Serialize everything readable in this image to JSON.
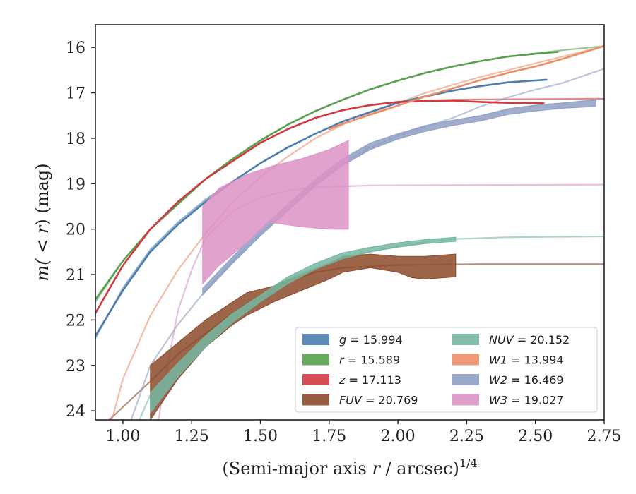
{
  "chart_data": {
    "type": "line",
    "title": "",
    "xlabel_main": "(Semi-major axis ",
    "xlabel_r": "r",
    "xlabel_tail": " / arcsec)",
    "xlabel_exp": "1/4",
    "ylabel_main": "m(",
    "ylabel_mid": " < ",
    "ylabel_r": "r",
    "ylabel_tail": ") (mag)",
    "xlim": [
      0.9,
      2.75
    ],
    "ylim": [
      24.2,
      15.5
    ],
    "y_inverted": true,
    "grid": false,
    "legend_position": "lower-right",
    "xticks": [
      1.0,
      1.25,
      1.5,
      1.75,
      2.0,
      2.25,
      2.5,
      2.75
    ],
    "xtick_labels": [
      "1.00",
      "1.25",
      "1.50",
      "1.75",
      "2.00",
      "2.25",
      "2.50",
      "2.75"
    ],
    "yticks": [
      16,
      17,
      18,
      19,
      20,
      21,
      22,
      23,
      24
    ],
    "ytick_labels": [
      "16",
      "17",
      "18",
      "19",
      "20",
      "21",
      "22",
      "23",
      "24"
    ],
    "series": [
      {
        "name": "g",
        "legend_value": "= 15.994",
        "color": "#4c7db0",
        "model": [
          [
            0.9,
            22.4
          ],
          [
            1.0,
            21.3
          ],
          [
            1.1,
            20.45
          ],
          [
            1.2,
            19.85
          ],
          [
            1.3,
            19.35
          ],
          [
            1.4,
            18.95
          ],
          [
            1.5,
            18.55
          ],
          [
            1.6,
            18.2
          ],
          [
            1.7,
            17.9
          ],
          [
            1.8,
            17.63
          ],
          [
            1.9,
            17.42
          ],
          [
            2.0,
            17.22
          ],
          [
            2.1,
            17.07
          ],
          [
            2.2,
            16.95
          ],
          [
            2.3,
            16.85
          ],
          [
            2.4,
            16.77
          ],
          [
            2.54,
            16.71
          ]
        ],
        "data": [
          [
            0.9,
            22.35
          ],
          [
            1.0,
            21.35
          ],
          [
            1.1,
            20.5
          ],
          [
            1.2,
            19.9
          ],
          [
            1.3,
            19.4
          ],
          [
            1.4,
            18.95
          ],
          [
            1.5,
            18.55
          ],
          [
            1.6,
            18.2
          ],
          [
            1.7,
            17.9
          ],
          [
            1.8,
            17.63
          ],
          [
            1.9,
            17.42
          ],
          [
            2.0,
            17.22
          ],
          [
            2.1,
            17.08
          ],
          [
            2.2,
            16.95
          ],
          [
            2.3,
            16.85
          ],
          [
            2.4,
            16.77
          ],
          [
            2.54,
            16.71
          ]
        ]
      },
      {
        "name": "r",
        "legend_value": "= 15.589",
        "color": "#59a14f",
        "model": [
          [
            0.9,
            21.6
          ],
          [
            1.0,
            20.7
          ],
          [
            1.1,
            20.0
          ],
          [
            1.2,
            19.45
          ],
          [
            1.3,
            18.9
          ],
          [
            1.4,
            18.45
          ],
          [
            1.5,
            18.05
          ],
          [
            1.6,
            17.7
          ],
          [
            1.7,
            17.4
          ],
          [
            1.8,
            17.15
          ],
          [
            1.9,
            16.92
          ],
          [
            2.0,
            16.73
          ],
          [
            2.1,
            16.56
          ],
          [
            2.2,
            16.42
          ],
          [
            2.3,
            16.3
          ],
          [
            2.4,
            16.2
          ],
          [
            2.5,
            16.13
          ],
          [
            2.6,
            16.06
          ],
          [
            2.75,
            15.97
          ]
        ],
        "data": [
          [
            0.9,
            21.55
          ],
          [
            1.0,
            20.7
          ],
          [
            1.1,
            20.0
          ],
          [
            1.2,
            19.45
          ],
          [
            1.3,
            18.9
          ],
          [
            1.4,
            18.45
          ],
          [
            1.5,
            18.05
          ],
          [
            1.6,
            17.7
          ],
          [
            1.7,
            17.4
          ],
          [
            1.8,
            17.15
          ],
          [
            1.9,
            16.92
          ],
          [
            2.0,
            16.73
          ],
          [
            2.1,
            16.56
          ],
          [
            2.2,
            16.42
          ],
          [
            2.3,
            16.3
          ],
          [
            2.4,
            16.2
          ],
          [
            2.5,
            16.14
          ],
          [
            2.58,
            16.1
          ]
        ]
      },
      {
        "name": "z",
        "legend_value": "= 17.113",
        "color": "#d13b40",
        "model": [
          [
            0.9,
            21.85
          ],
          [
            1.0,
            20.8
          ],
          [
            1.1,
            20.0
          ],
          [
            1.2,
            19.4
          ],
          [
            1.3,
            18.9
          ],
          [
            1.4,
            18.5
          ],
          [
            1.5,
            18.1
          ],
          [
            1.6,
            17.8
          ],
          [
            1.7,
            17.55
          ],
          [
            1.8,
            17.38
          ],
          [
            1.9,
            17.27
          ],
          [
            2.0,
            17.2
          ],
          [
            2.1,
            17.17
          ],
          [
            2.2,
            17.15
          ],
          [
            2.4,
            17.14
          ],
          [
            2.75,
            17.13
          ]
        ],
        "data": [
          [
            0.9,
            21.85
          ],
          [
            1.0,
            20.8
          ],
          [
            1.1,
            20.0
          ],
          [
            1.2,
            19.4
          ],
          [
            1.3,
            18.9
          ],
          [
            1.4,
            18.5
          ],
          [
            1.5,
            18.1
          ],
          [
            1.6,
            17.8
          ],
          [
            1.7,
            17.55
          ],
          [
            1.8,
            17.38
          ],
          [
            1.9,
            17.27
          ],
          [
            2.0,
            17.2
          ],
          [
            2.1,
            17.18
          ],
          [
            2.2,
            17.17
          ],
          [
            2.3,
            17.2
          ],
          [
            2.4,
            17.22
          ],
          [
            2.53,
            17.23
          ]
        ]
      },
      {
        "name": "FUV",
        "legend_value": "= 20.769",
        "color": "#8c4a2a",
        "model": [
          [
            0.95,
            24.2
          ],
          [
            1.1,
            23.35
          ],
          [
            1.2,
            22.75
          ],
          [
            1.3,
            22.3
          ],
          [
            1.4,
            21.85
          ],
          [
            1.5,
            21.45
          ],
          [
            1.6,
            21.15
          ],
          [
            1.7,
            20.95
          ],
          [
            1.8,
            20.85
          ],
          [
            2.0,
            20.79
          ],
          [
            2.3,
            20.77
          ],
          [
            2.75,
            20.77
          ]
        ],
        "upper": [
          [
            1.1,
            23.0
          ],
          [
            1.2,
            22.5
          ],
          [
            1.3,
            22.0
          ],
          [
            1.4,
            21.6
          ],
          [
            1.45,
            21.4
          ],
          [
            1.55,
            21.25
          ],
          [
            1.65,
            21.0
          ],
          [
            1.75,
            20.75
          ],
          [
            1.8,
            20.6
          ],
          [
            1.9,
            20.55
          ],
          [
            2.0,
            20.6
          ],
          [
            2.1,
            20.6
          ],
          [
            2.21,
            20.55
          ]
        ],
        "lower": [
          [
            1.1,
            24.2
          ],
          [
            1.2,
            23.3
          ],
          [
            1.3,
            22.6
          ],
          [
            1.4,
            22.1
          ],
          [
            1.45,
            21.9
          ],
          [
            1.55,
            21.6
          ],
          [
            1.65,
            21.35
          ],
          [
            1.75,
            21.1
          ],
          [
            1.8,
            20.95
          ],
          [
            1.9,
            20.85
          ],
          [
            2.0,
            20.95
          ],
          [
            2.05,
            21.07
          ],
          [
            2.1,
            21.1
          ],
          [
            2.21,
            21.05
          ]
        ]
      },
      {
        "name": "NUV",
        "legend_value": "= 20.152",
        "color": "#76b7a1",
        "model": [
          [
            1.06,
            24.2
          ],
          [
            1.1,
            23.65
          ],
          [
            1.2,
            23.0
          ],
          [
            1.3,
            22.35
          ],
          [
            1.4,
            21.85
          ],
          [
            1.5,
            21.45
          ],
          [
            1.6,
            21.1
          ],
          [
            1.7,
            20.85
          ],
          [
            1.8,
            20.65
          ],
          [
            1.9,
            20.5
          ],
          [
            2.0,
            20.38
          ],
          [
            2.1,
            20.28
          ],
          [
            2.2,
            20.22
          ],
          [
            2.4,
            20.18
          ],
          [
            2.75,
            20.16
          ]
        ],
        "upper": [
          [
            1.1,
            23.6
          ],
          [
            1.2,
            22.95
          ],
          [
            1.3,
            22.35
          ],
          [
            1.4,
            21.85
          ],
          [
            1.5,
            21.45
          ],
          [
            1.6,
            21.05
          ],
          [
            1.7,
            20.75
          ],
          [
            1.8,
            20.52
          ],
          [
            1.9,
            20.4
          ],
          [
            2.0,
            20.3
          ],
          [
            2.1,
            20.23
          ],
          [
            2.21,
            20.18
          ]
        ],
        "lower": [
          [
            1.1,
            24.05
          ],
          [
            1.2,
            23.25
          ],
          [
            1.3,
            22.6
          ],
          [
            1.4,
            22.05
          ],
          [
            1.5,
            21.6
          ],
          [
            1.6,
            21.2
          ],
          [
            1.7,
            20.88
          ],
          [
            1.8,
            20.65
          ],
          [
            1.9,
            20.5
          ],
          [
            2.0,
            20.4
          ],
          [
            2.1,
            20.32
          ],
          [
            2.21,
            20.27
          ]
        ]
      },
      {
        "name": "W1",
        "legend_value": "= 13.994",
        "color": "#eb8f6a",
        "model": [
          [
            0.96,
            24.2
          ],
          [
            1.0,
            23.3
          ],
          [
            1.1,
            21.9
          ],
          [
            1.2,
            20.9
          ],
          [
            1.3,
            20.1
          ],
          [
            1.4,
            19.4
          ],
          [
            1.5,
            18.85
          ],
          [
            1.6,
            18.4
          ],
          [
            1.7,
            18.0
          ],
          [
            1.8,
            17.7
          ],
          [
            1.9,
            17.45
          ],
          [
            2.0,
            17.22
          ],
          [
            2.1,
            17.0
          ],
          [
            2.2,
            16.82
          ],
          [
            2.3,
            16.65
          ],
          [
            2.4,
            16.5
          ],
          [
            2.5,
            16.35
          ],
          [
            2.6,
            16.2
          ],
          [
            2.75,
            15.97
          ]
        ],
        "data": [
          [
            1.75,
            17.8
          ],
          [
            1.8,
            17.68
          ],
          [
            1.9,
            17.48
          ],
          [
            2.0,
            17.28
          ],
          [
            2.1,
            17.08
          ],
          [
            2.2,
            16.9
          ],
          [
            2.3,
            16.72
          ],
          [
            2.4,
            16.56
          ],
          [
            2.5,
            16.42
          ],
          [
            2.6,
            16.25
          ],
          [
            2.75,
            15.97
          ]
        ]
      },
      {
        "name": "W2",
        "legend_value": "= 16.469",
        "color": "#8f9fc3",
        "model": [
          [
            1.03,
            24.2
          ],
          [
            1.1,
            23.0
          ],
          [
            1.2,
            22.1
          ],
          [
            1.3,
            21.35
          ],
          [
            1.4,
            20.7
          ],
          [
            1.5,
            20.1
          ],
          [
            1.6,
            19.55
          ],
          [
            1.7,
            19.0
          ],
          [
            1.8,
            18.55
          ],
          [
            1.9,
            18.2
          ],
          [
            2.0,
            17.95
          ],
          [
            2.1,
            17.75
          ],
          [
            2.2,
            17.55
          ],
          [
            2.3,
            17.3
          ],
          [
            2.4,
            17.1
          ],
          [
            2.5,
            16.93
          ],
          [
            2.6,
            16.78
          ],
          [
            2.75,
            16.47
          ]
        ],
        "upper": [
          [
            1.29,
            21.3
          ],
          [
            1.4,
            20.6
          ],
          [
            1.5,
            20.0
          ],
          [
            1.6,
            19.45
          ],
          [
            1.7,
            18.9
          ],
          [
            1.8,
            18.45
          ],
          [
            1.9,
            18.1
          ],
          [
            2.0,
            17.9
          ],
          [
            2.1,
            17.72
          ],
          [
            2.2,
            17.6
          ],
          [
            2.3,
            17.5
          ],
          [
            2.4,
            17.35
          ],
          [
            2.5,
            17.27
          ],
          [
            2.6,
            17.22
          ],
          [
            2.72,
            17.15
          ]
        ],
        "lower": [
          [
            1.29,
            21.45
          ],
          [
            1.4,
            20.75
          ],
          [
            1.5,
            20.15
          ],
          [
            1.6,
            19.6
          ],
          [
            1.7,
            19.05
          ],
          [
            1.8,
            18.6
          ],
          [
            1.9,
            18.25
          ],
          [
            2.0,
            18.02
          ],
          [
            2.1,
            17.85
          ],
          [
            2.2,
            17.72
          ],
          [
            2.3,
            17.62
          ],
          [
            2.4,
            17.48
          ],
          [
            2.5,
            17.4
          ],
          [
            2.6,
            17.34
          ],
          [
            2.72,
            17.3
          ]
        ]
      },
      {
        "name": "W3",
        "legend_value": "= 19.027",
        "color": "#dc92c6",
        "model": [
          [
            1.13,
            24.2
          ],
          [
            1.15,
            23.4
          ],
          [
            1.2,
            21.8
          ],
          [
            1.25,
            20.9
          ],
          [
            1.3,
            20.2
          ],
          [
            1.4,
            19.6
          ],
          [
            1.5,
            19.3
          ],
          [
            1.6,
            19.15
          ],
          [
            1.7,
            19.08
          ],
          [
            1.9,
            19.04
          ],
          [
            2.3,
            19.03
          ],
          [
            2.75,
            19.02
          ]
        ],
        "upper": [
          [
            1.29,
            19.5
          ],
          [
            1.35,
            19.1
          ],
          [
            1.45,
            18.8
          ],
          [
            1.55,
            18.6
          ],
          [
            1.65,
            18.45
          ],
          [
            1.75,
            18.25
          ],
          [
            1.82,
            18.05
          ]
        ],
        "lower": [
          [
            1.29,
            21.2
          ],
          [
            1.35,
            20.8
          ],
          [
            1.45,
            20.3
          ],
          [
            1.53,
            19.85
          ],
          [
            1.65,
            19.95
          ],
          [
            1.75,
            20.0
          ],
          [
            1.82,
            20.0
          ]
        ]
      }
    ]
  }
}
